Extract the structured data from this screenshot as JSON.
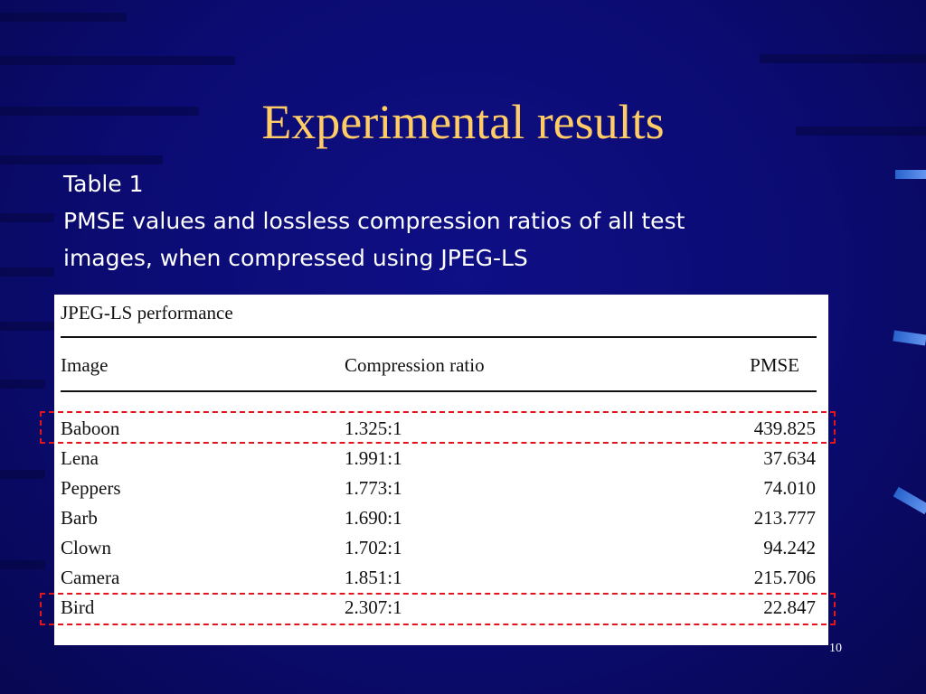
{
  "slide": {
    "title": "Experimental results",
    "caption_line1": "Table 1",
    "caption_line2": "PMSE values and lossless compression ratios of all test",
    "caption_line3": "images, when compressed using JPEG-LS",
    "page_number": "10"
  },
  "table": {
    "title": "JPEG-LS performance",
    "headers": [
      "Image",
      "Compression ratio",
      "PMSE"
    ],
    "rows": [
      [
        "Baboon",
        "1.325:1",
        "439.825"
      ],
      [
        "Lena",
        "1.991:1",
        "37.634"
      ],
      [
        "Peppers",
        "1.773:1",
        "74.010"
      ],
      [
        "Barb",
        "1.690:1",
        "213.777"
      ],
      [
        "Clown",
        "1.702:1",
        "94.242"
      ],
      [
        "Camera",
        "1.851:1",
        "215.706"
      ],
      [
        "Bird",
        "2.307:1",
        "22.847"
      ]
    ]
  },
  "colors": {
    "background": "#0a0a6e",
    "title": "#ffcc66",
    "caption": "#ffffff",
    "highlight": "#e2141e"
  }
}
